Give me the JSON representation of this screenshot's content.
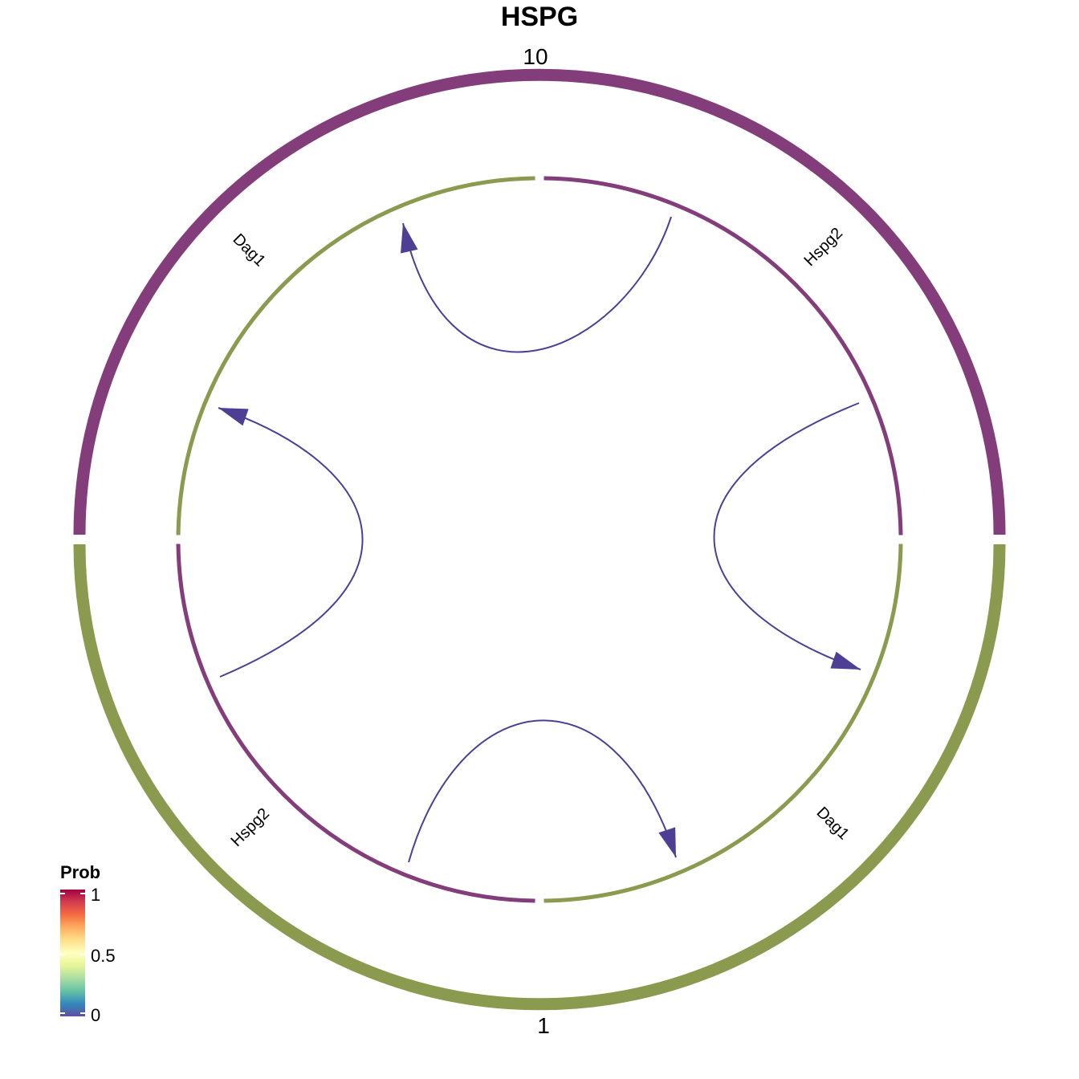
{
  "chart_data": {
    "type": "chord",
    "title": "HSPG",
    "groups": [
      {
        "name": "10",
        "color": "#833D7A"
      },
      {
        "name": "1",
        "color": "#8A9B4F"
      }
    ],
    "sectors": [
      {
        "name": "Hspg2",
        "group": "10",
        "color": "#833D7A"
      },
      {
        "name": "Dag1",
        "group": "10",
        "color": "#8A9B4F"
      },
      {
        "name": "Hspg2",
        "group": "1",
        "color": "#833D7A"
      },
      {
        "name": "Dag1",
        "group": "1",
        "color": "#8A9B4F"
      }
    ],
    "links": [
      {
        "from_group": "10",
        "from": "Hspg2",
        "to_group": "10",
        "to": "Dag1",
        "prob": 0
      },
      {
        "from_group": "10",
        "from": "Hspg2",
        "to_group": "1",
        "to": "Dag1",
        "prob": 0
      },
      {
        "from_group": "1",
        "from": "Hspg2",
        "to_group": "10",
        "to": "Dag1",
        "prob": 0
      },
      {
        "from_group": "1",
        "from": "Hspg2",
        "to_group": "1",
        "to": "Dag1",
        "prob": 0
      }
    ],
    "legend": {
      "title": "Prob",
      "ticks": [
        "1",
        "0.5",
        "0"
      ],
      "range": [
        0,
        1
      ],
      "position": "bottom-left",
      "colors": [
        "#9E0142",
        "#D53E4F",
        "#F46D43",
        "#FDAE61",
        "#FEE08B",
        "#FFFFBF",
        "#E6F598",
        "#ABDDA4",
        "#66C2A5",
        "#3288BD",
        "#5E4FA2"
      ]
    },
    "link_color": "#4E3F94"
  }
}
